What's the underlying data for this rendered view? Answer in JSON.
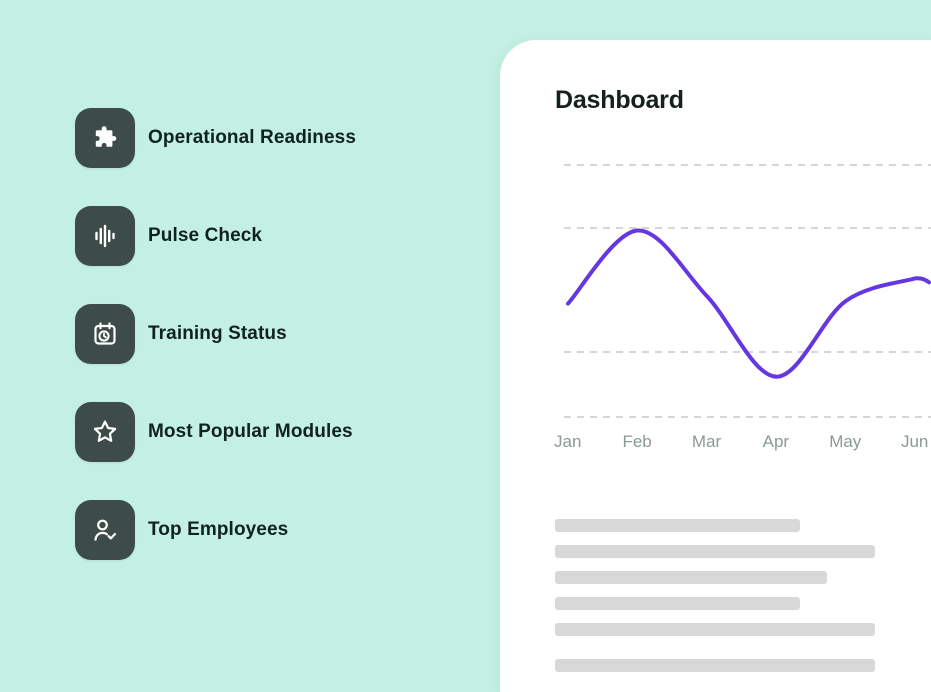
{
  "menu": {
    "items": [
      {
        "label": "Operational Readiness",
        "icon": "puzzle-icon"
      },
      {
        "label": "Pulse Check",
        "icon": "pulse-icon"
      },
      {
        "label": "Training Status",
        "icon": "calendar-clock-icon"
      },
      {
        "label": "Most Popular Modules",
        "icon": "star-icon"
      },
      {
        "label": "Top Employees",
        "icon": "user-check-icon"
      }
    ]
  },
  "card": {
    "title": "Dashboard"
  },
  "chart_data": {
    "type": "line",
    "categories": [
      "Jan",
      "Feb",
      "Mar",
      "Apr",
      "May",
      "Jun"
    ],
    "values": [
      45,
      74,
      48,
      16,
      46,
      55
    ],
    "title": "",
    "xlabel": "",
    "ylabel": "",
    "ylim": [
      0,
      100
    ],
    "grid": "horizontal-dashed",
    "gridline_count": 4,
    "legend": "none",
    "line_color": "#6437e2"
  },
  "colors": {
    "background": "#c3f0e3",
    "icon_tile": "#3d4c48",
    "menu_text": "#102220",
    "card_background": "#ffffff",
    "axis_label": "#8a9a97",
    "gridline": "#c9c9c9",
    "skeleton": "#d8d8d8",
    "accent_line": "#6437e2"
  }
}
